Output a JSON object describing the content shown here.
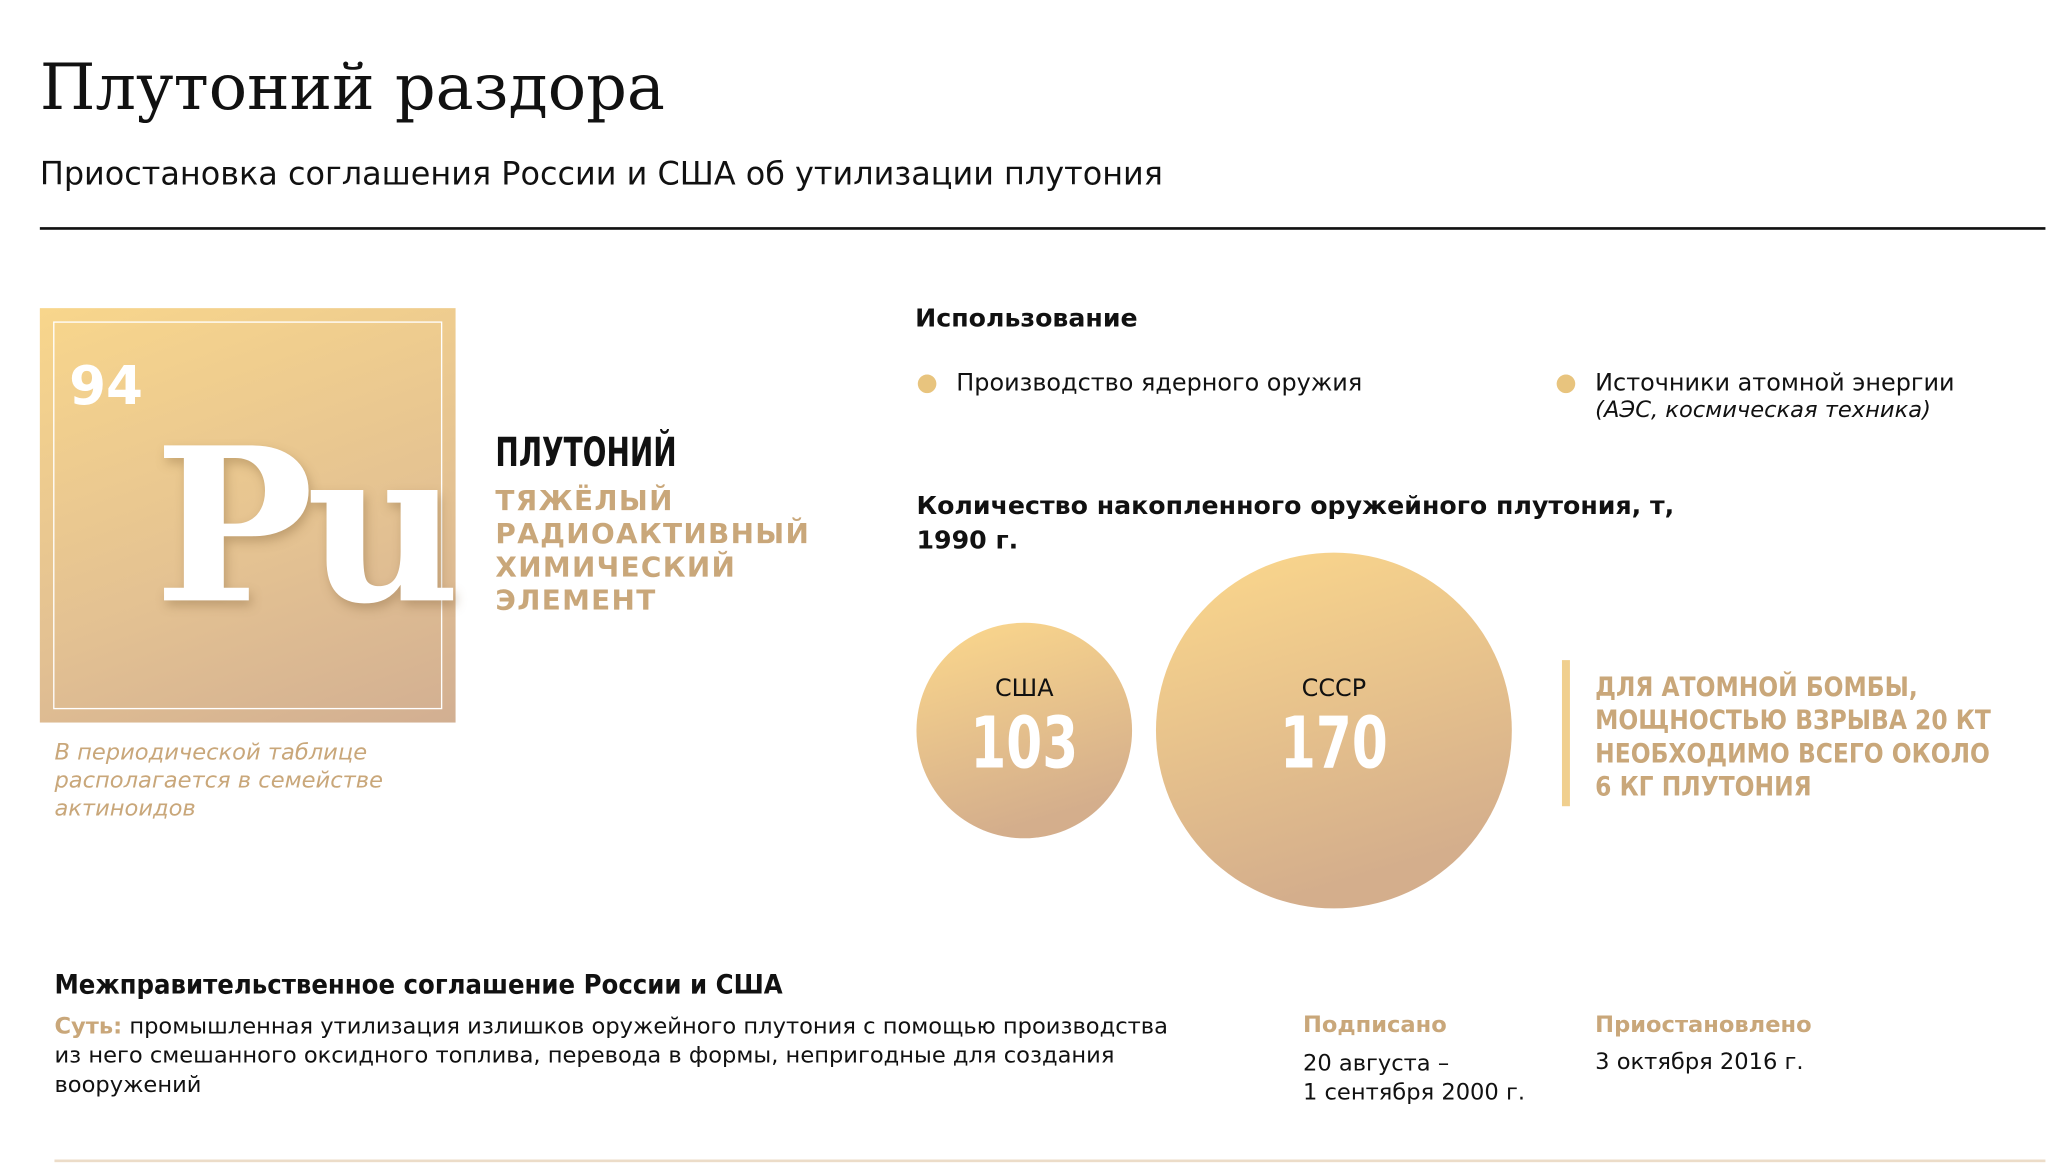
{
  "header": {
    "title": "Плутоний раздора",
    "subtitle": "Приостановка соглашения России и США об утилизации плутония"
  },
  "element": {
    "number": "94",
    "symbol": "Pu",
    "name": "ПЛУТОНИЙ",
    "description": [
      "ТЯЖЁЛЫЙ",
      "РАДИОАКТИВНЫЙ",
      "ХИМИЧЕСКИЙ",
      "ЭЛЕМЕНТ"
    ],
    "note": [
      "В периодической таблице",
      "располагается в семействе",
      "актиноидов"
    ]
  },
  "usage": {
    "title": "Использование",
    "items": [
      {
        "text": "Производство ядерного оружия"
      },
      {
        "text": "Источники атомной энергии",
        "note": "(АЭС, космическая техника)"
      }
    ]
  },
  "stock": {
    "title": [
      "Количество накопленного оружейного плутония, т,",
      "1990 г."
    ],
    "bubbles": [
      {
        "label": "США",
        "value": 103
      },
      {
        "label": "СССР",
        "value": 170
      }
    ],
    "fact": [
      "ДЛЯ АТОМНОЙ БОМБЫ,",
      "МОЩНОСТЬЮ ВЗРЫВА 20 КТ",
      "НЕОБХОДИМО ВСЕГО ОКОЛО",
      "6 КГ ПЛУТОНИЯ"
    ]
  },
  "agreement": {
    "title": "Межправительственное соглашение России и США",
    "essence_label": "Суть:",
    "essence": [
      "промышленная утилизация излишков оружейного плутония с помощью производства",
      "из него смешанного оксидного топлива, перевода в формы, непригодные для создания",
      "вооружений"
    ],
    "signed_label": "Подписано",
    "signed": [
      "20 августа –",
      "1 сентября 2000 г."
    ],
    "suspended_label": "Приостановлено",
    "suspended": "3 октября 2016 г."
  }
}
